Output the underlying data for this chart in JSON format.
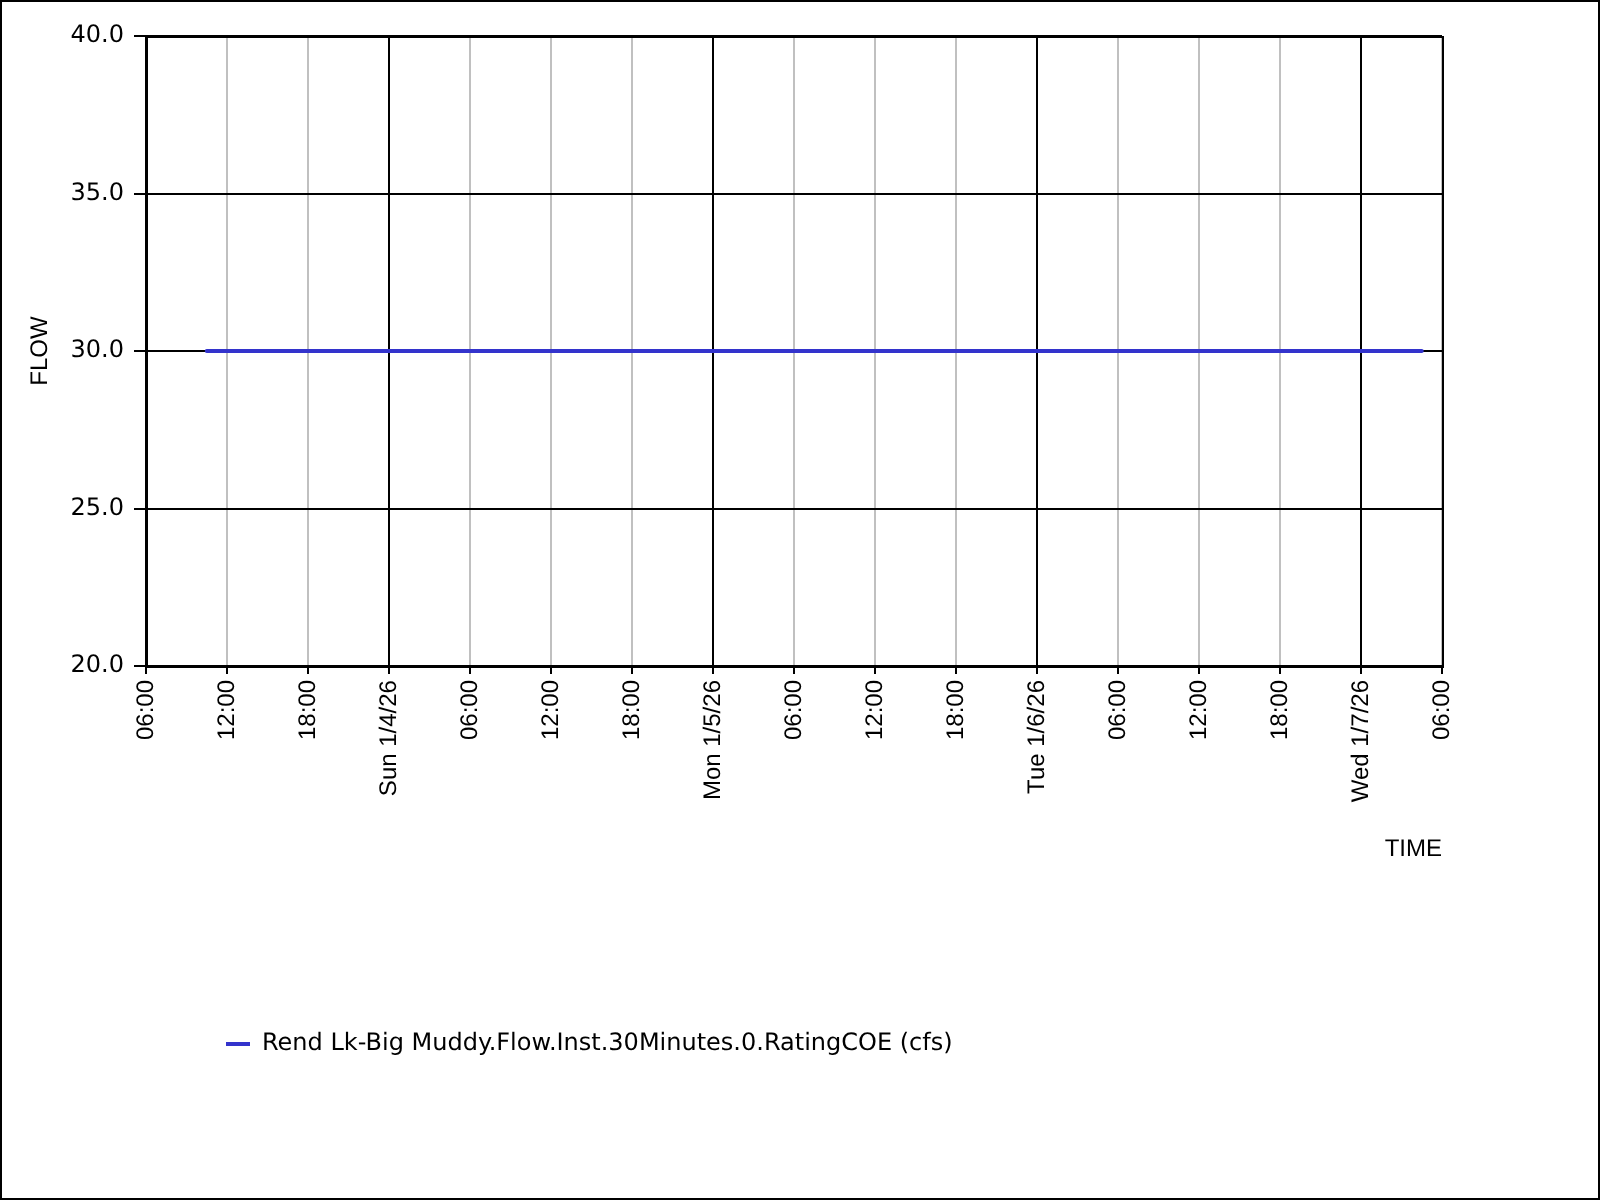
{
  "chart_data": {
    "type": "line",
    "xlabel": "TIME",
    "ylabel": "FLOW",
    "x": [
      "--01-03T10:30",
      "--01-07T04:30"
    ],
    "series": [
      {
        "name": "Rend Lk-Big Muddy.Flow.Inst.30Minutes.0.RatingCOE (cfs)",
        "color": "#3333cc",
        "values": [
          30,
          30
        ]
      }
    ],
    "xlim": [
      "--01-03T06:00",
      "--01-07T06:00"
    ],
    "xticks": [
      {
        "value": "--01-03T06:00",
        "label": "06:00"
      },
      {
        "value": "--01-03T12:00",
        "label": "12:00"
      },
      {
        "value": "--01-03T18:00",
        "label": "18:00"
      },
      {
        "value": "--01-04T00:00",
        "label": "Sun 1/4/26"
      },
      {
        "value": "--01-04T06:00",
        "label": "06:00"
      },
      {
        "value": "--01-04T12:00",
        "label": "12:00"
      },
      {
        "value": "--01-04T18:00",
        "label": "18:00"
      },
      {
        "value": "--01-05T00:00",
        "label": "Mon 1/5/26"
      },
      {
        "value": "--01-05T06:00",
        "label": "06:00"
      },
      {
        "value": "--01-05T12:00",
        "label": "12:00"
      },
      {
        "value": "--01-05T18:00",
        "label": "18:00"
      },
      {
        "value": "--01-06T00:00",
        "label": "Tue 1/6/26"
      },
      {
        "value": "--01-06T06:00",
        "label": "06:00"
      },
      {
        "value": "--01-06T12:00",
        "label": "12:00"
      },
      {
        "value": "--01-06T18:00",
        "label": "18:00"
      },
      {
        "value": "--01-07T00:00",
        "label": "Wed 1/7/26"
      },
      {
        "value": "--01-07T06:00",
        "label": "06:00"
      }
    ],
    "ylim": [
      20,
      40
    ],
    "yticks": [
      {
        "value": 20,
        "label": "20.0"
      },
      {
        "value": 25,
        "label": "25.0"
      },
      {
        "value": 30,
        "label": "30.0"
      },
      {
        "value": 35,
        "label": "35.0"
      },
      {
        "value": 40,
        "label": "40.0"
      }
    ],
    "grid": true,
    "legend": "bottom",
    "marker": "none",
    "line_style": "solid"
  }
}
